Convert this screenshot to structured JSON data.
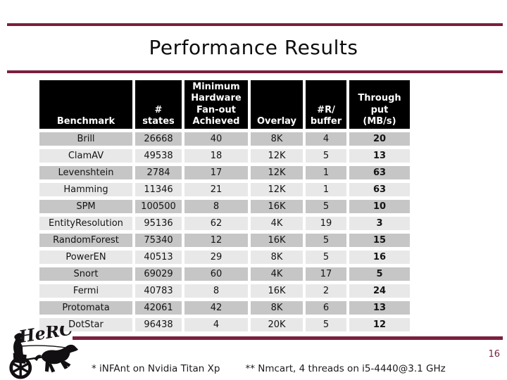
{
  "slide": {
    "title": "Performance Results",
    "page_number": "16",
    "accent_color": "#7b1f3e",
    "background_color": "#ffffff"
  },
  "logo": {
    "name": "HeRC chariot logo",
    "text": "HeRC"
  },
  "table": {
    "headers": [
      "Benchmark",
      "#\nstates",
      "Minimum\nHardware\nFan-out\nAchieved",
      "Overlay",
      "#R/\nbuffer",
      "Through\nput\n(MB/s)"
    ],
    "header_bg": "#000000",
    "header_fg": "#ffffff",
    "row_dark": "#c6c6c6",
    "row_light": "#e8e8e8",
    "rows": [
      [
        "Brill",
        "26668",
        "40",
        "8K",
        "4",
        "20"
      ],
      [
        "ClamAV",
        "49538",
        "18",
        "12K",
        "5",
        "13"
      ],
      [
        "Levenshtein",
        "2784",
        "17",
        "12K",
        "1",
        "63"
      ],
      [
        "Hamming",
        "11346",
        "21",
        "12K",
        "1",
        "63"
      ],
      [
        "SPM",
        "100500",
        "8",
        "16K",
        "5",
        "10"
      ],
      [
        "EntityResolution",
        "95136",
        "62",
        "4K",
        "19",
        "3"
      ],
      [
        "RandomForest",
        "75340",
        "12",
        "16K",
        "5",
        "15"
      ],
      [
        "PowerEN",
        "40513",
        "29",
        "8K",
        "5",
        "16"
      ],
      [
        "Snort",
        "69029",
        "60",
        "4K",
        "17",
        "5"
      ],
      [
        "Fermi",
        "40783",
        "8",
        "16K",
        "2",
        "24"
      ],
      [
        "Protomata",
        "42061",
        "42",
        "8K",
        "6",
        "13"
      ],
      [
        "DotStar",
        "96438",
        "4",
        "20K",
        "5",
        "12"
      ]
    ]
  },
  "footnotes": [
    "* iNFAnt on Nvidia Titan Xp",
    "** Nmcart, 4 threads on i5-4440@3.1 GHz"
  ],
  "chart_data": {
    "type": "table",
    "title": "Performance Results",
    "columns": [
      "Benchmark",
      "# states",
      "Minimum Hardware Fan-out Achieved",
      "Overlay",
      "#R/buffer",
      "Throughput (MB/s)"
    ],
    "rows": [
      [
        "Brill",
        26668,
        40,
        "8K",
        4,
        20
      ],
      [
        "ClamAV",
        49538,
        18,
        "12K",
        5,
        13
      ],
      [
        "Levenshtein",
        2784,
        17,
        "12K",
        1,
        63
      ],
      [
        "Hamming",
        11346,
        21,
        "12K",
        1,
        63
      ],
      [
        "SPM",
        100500,
        8,
        "16K",
        5,
        10
      ],
      [
        "EntityResolution",
        95136,
        62,
        "4K",
        19,
        3
      ],
      [
        "RandomForest",
        75340,
        12,
        "16K",
        5,
        15
      ],
      [
        "PowerEN",
        40513,
        29,
        "8K",
        5,
        16
      ],
      [
        "Snort",
        69029,
        60,
        "4K",
        17,
        5
      ],
      [
        "Fermi",
        40783,
        8,
        "16K",
        2,
        24
      ],
      [
        "Protomata",
        42061,
        42,
        "8K",
        6,
        13
      ],
      [
        "DotStar",
        96438,
        4,
        "20K",
        5,
        12
      ]
    ]
  }
}
